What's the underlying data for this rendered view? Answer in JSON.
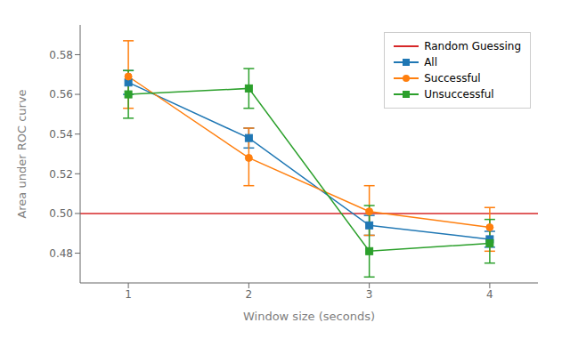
{
  "chart_data": {
    "type": "line",
    "x": [
      1,
      2,
      3,
      4
    ],
    "xlabel": "Window size (seconds)",
    "ylabel": "Area under ROC curve",
    "xlim": [
      0.6,
      4.4
    ],
    "ylim": [
      0.465,
      0.595
    ],
    "xticks": [
      1,
      2,
      3,
      4
    ],
    "yticks": [
      0.48,
      {
        "value": 0.5,
        "label": "0.50"
      },
      0.52,
      0.54,
      0.56,
      0.58
    ],
    "grid": false,
    "legend": "upper right",
    "series": [
      {
        "name": "Random Guessing",
        "type": "hline",
        "color": "#d62728",
        "y": 0.5
      },
      {
        "name": "All",
        "color": "#1f77b4",
        "marker": "square",
        "values": [
          0.566,
          0.538,
          0.494,
          0.487
        ],
        "error_lower": [
          0.006,
          0.005,
          0.005,
          0.004
        ],
        "error_upper": [
          0.006,
          0.005,
          0.005,
          0.004
        ]
      },
      {
        "name": "Successful",
        "color": "#ff7f0e",
        "marker": "circle",
        "values": [
          0.569,
          0.528,
          0.501,
          0.493
        ],
        "error_lower": [
          0.016,
          0.014,
          0.012,
          0.012
        ],
        "error_upper": [
          0.018,
          0.015,
          0.013,
          0.01
        ]
      },
      {
        "name": "Unsuccessful",
        "color": "#2ca02c",
        "marker": "square",
        "values": [
          0.56,
          0.563,
          0.481,
          0.485
        ],
        "error_lower": [
          0.012,
          0.01,
          0.013,
          0.01
        ],
        "error_upper": [
          0.012,
          0.01,
          0.023,
          0.012
        ]
      }
    ]
  }
}
